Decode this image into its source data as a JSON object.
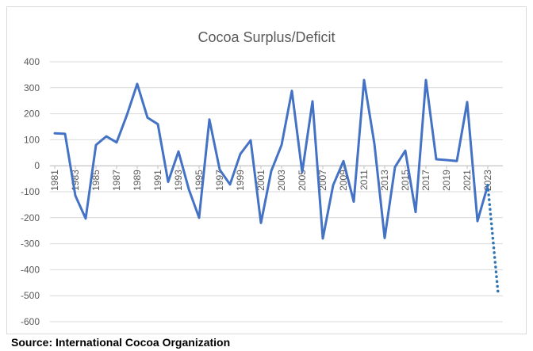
{
  "chart_data": {
    "type": "line",
    "title": "Cocoa Surplus/Deficit",
    "xlabel": "",
    "ylabel": "",
    "ylim": [
      -600,
      400
    ],
    "yticks": [
      400,
      300,
      200,
      100,
      0,
      -100,
      -200,
      -300,
      -400,
      -500,
      -600
    ],
    "xlim": [
      1981,
      2024
    ],
    "xticks": [
      "1981",
      "1983",
      "1985",
      "1987",
      "1989",
      "1991",
      "1993",
      "1995",
      "1997",
      "1999",
      "2001",
      "2003",
      "2005",
      "2007",
      "2009",
      "2011",
      "2013",
      "2015",
      "2017",
      "2019",
      "2021",
      "2023"
    ],
    "grid": true,
    "legend": "none",
    "series": [
      {
        "style": "solid",
        "color": "#4472C4",
        "x": [
          1981,
          1982,
          1983,
          1984,
          1985,
          1986,
          1987,
          1988,
          1989,
          1990,
          1991,
          1992,
          1993,
          1994,
          1995,
          1996,
          1997,
          1998,
          1999,
          2000,
          2001,
          2002,
          2003,
          2004,
          2005,
          2006,
          2007,
          2008,
          2009,
          2010,
          2011,
          2012,
          2013,
          2014,
          2015,
          2016,
          2017,
          2018,
          2019,
          2020,
          2021,
          2022,
          2023
        ],
        "values": [
          125,
          123,
          -115,
          -203,
          80,
          113,
          90,
          195,
          315,
          185,
          160,
          -62,
          55,
          -90,
          -200,
          178,
          -15,
          -72,
          45,
          98,
          -220,
          -20,
          80,
          288,
          -25,
          248,
          -280,
          -75,
          18,
          -138,
          330,
          85,
          -278,
          -5,
          58,
          -178,
          330,
          25,
          22,
          18,
          245,
          -213,
          -75
        ]
      },
      {
        "style": "dotted",
        "color": "#2E75B6",
        "x": [
          2023,
          2024
        ],
        "values": [
          -75,
          -490
        ]
      }
    ]
  },
  "source": "Source: International Cocoa Organization"
}
